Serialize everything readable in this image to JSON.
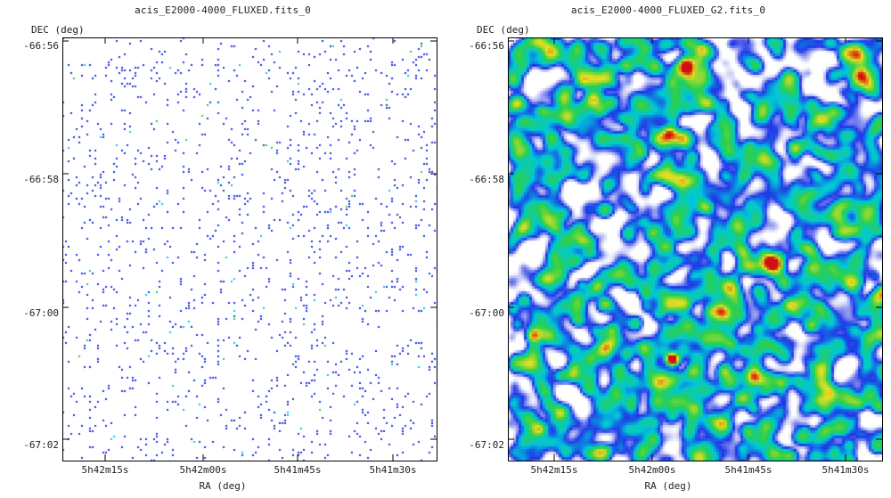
{
  "chart_data": [
    {
      "type": "heatmap",
      "title": "acis_E2000-4000_FLUXED.fits_0",
      "xlabel": "RA (deg)",
      "ylabel": "DEC (deg)",
      "x_ticks": [
        "5h42m15s",
        "5h42m00s",
        "5h41m45s",
        "5h41m30s"
      ],
      "y_ticks": [
        "-66:56",
        "-66:58",
        "-67:00",
        "-67:02"
      ],
      "rendering": "sparse single-photon counts",
      "colormap": [
        "#ffffff",
        "#1a2fe0",
        "#00c8e6",
        "#1fd04a"
      ],
      "grid": false
    },
    {
      "type": "heatmap",
      "title": "acis_E2000-4000_FLUXED_G2.fits_0",
      "xlabel": "RA (deg)",
      "ylabel": "DEC (deg)",
      "x_ticks": [
        "5h42m15s",
        "5h42m00s",
        "5h41m45s",
        "5h41m30s"
      ],
      "y_ticks": [
        "-66:56",
        "-66:58",
        "-67:00",
        "-67:02"
      ],
      "rendering": "gaussian-smoothed counts",
      "colormap": [
        "#ffffff",
        "#c8cbf4",
        "#1f35e8",
        "#00c8d8",
        "#2ad04a",
        "#e8e020",
        "#d01010"
      ],
      "grid": false
    }
  ]
}
